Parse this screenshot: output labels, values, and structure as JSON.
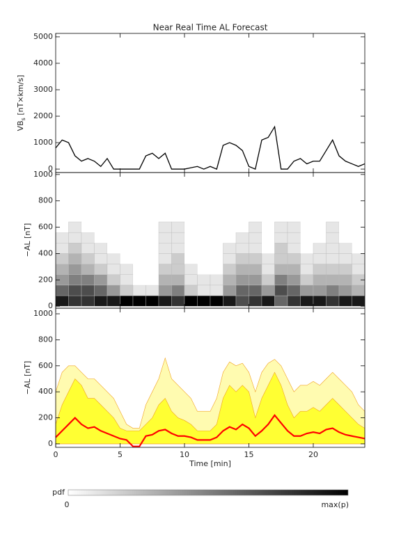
{
  "chart_data": [
    {
      "type": "line",
      "title": "Near Real Time AL Forecast",
      "y_label": {
        "main": "VB",
        "sub": "s",
        "unit": " [nT×km/s]"
      },
      "x": [
        0,
        0.5,
        1,
        1.5,
        2,
        2.5,
        3,
        3.5,
        4,
        4.5,
        5,
        5.5,
        6,
        6.5,
        7,
        7.5,
        8,
        8.5,
        9,
        9.5,
        10,
        10.5,
        11,
        11.5,
        12,
        12.5,
        13,
        13.5,
        14,
        14.5,
        15,
        15.5,
        16,
        16.5,
        17,
        17.5,
        18,
        18.5,
        19,
        19.5,
        20,
        20.5,
        21,
        21.5,
        22,
        22.5,
        23,
        23.5,
        24
      ],
      "values": [
        800,
        1100,
        1000,
        500,
        300,
        400,
        300,
        100,
        400,
        0,
        0,
        0,
        0,
        0,
        500,
        600,
        400,
        600,
        0,
        0,
        0,
        50,
        100,
        0,
        100,
        0,
        900,
        1000,
        900,
        700,
        100,
        0,
        1100,
        1200,
        1600,
        0,
        0,
        300,
        400,
        200,
        300,
        300,
        700,
        1100,
        500,
        300,
        200,
        100,
        200
      ],
      "color": "#000000",
      "xlim": [
        0,
        24
      ],
      "xticks": [
        0,
        5,
        10,
        15,
        20
      ],
      "ylim": [
        -130,
        5130
      ],
      "yticks": [
        0,
        1000,
        2000,
        3000,
        4000,
        5000
      ]
    },
    {
      "type": "heatmap",
      "y_label": "−AL [nT]",
      "x_edges": [
        0,
        1,
        2,
        3,
        4,
        5,
        6,
        7,
        8,
        9,
        10,
        11,
        12,
        13,
        14,
        15,
        16,
        17,
        18,
        19,
        20,
        21,
        22,
        23,
        24
      ],
      "y_edges": [
        0,
        80,
        160,
        240,
        320,
        400,
        480,
        560,
        640
      ],
      "z": [
        [
          0.9,
          0.8,
          0.8,
          0.9,
          0.9,
          1,
          1,
          1,
          0.9,
          0.8,
          1,
          1,
          1,
          0.9,
          0.7,
          0.8,
          0.9,
          0.6,
          0.8,
          0.9,
          0.9,
          0.8,
          0.9,
          0.9
        ],
        [
          0.6,
          0.7,
          0.7,
          0.6,
          0.4,
          0.2,
          0.1,
          0.1,
          0.4,
          0.5,
          0.2,
          0.1,
          0.1,
          0.4,
          0.6,
          0.6,
          0.4,
          0.7,
          0.6,
          0.4,
          0.4,
          0.5,
          0.4,
          0.3
        ],
        [
          0.4,
          0.5,
          0.5,
          0.4,
          0.2,
          0.1,
          0,
          0,
          0.3,
          0.3,
          0.1,
          0.1,
          0.1,
          0.3,
          0.4,
          0.4,
          0.2,
          0.5,
          0.4,
          0.2,
          0.3,
          0.3,
          0.3,
          0.2
        ],
        [
          0.3,
          0.4,
          0.3,
          0.2,
          0.1,
          0.1,
          0,
          0,
          0.2,
          0.2,
          0.1,
          0,
          0,
          0.2,
          0.3,
          0.3,
          0.1,
          0.3,
          0.3,
          0.1,
          0.2,
          0.2,
          0.2,
          0.1
        ],
        [
          0.2,
          0.3,
          0.2,
          0.1,
          0.1,
          0,
          0,
          0,
          0.1,
          0.2,
          0,
          0,
          0,
          0.1,
          0.2,
          0.2,
          0.1,
          0.2,
          0.2,
          0.1,
          0.1,
          0.1,
          0.1,
          0.1
        ],
        [
          0.1,
          0.2,
          0.1,
          0.1,
          0,
          0,
          0,
          0,
          0.1,
          0.1,
          0,
          0,
          0,
          0.1,
          0.1,
          0.1,
          0,
          0.2,
          0.1,
          0,
          0.1,
          0.1,
          0.1,
          0
        ],
        [
          0.1,
          0.1,
          0.1,
          0,
          0,
          0,
          0,
          0,
          0.1,
          0.1,
          0,
          0,
          0,
          0,
          0.1,
          0.1,
          0,
          0.1,
          0.1,
          0,
          0,
          0.1,
          0,
          0
        ],
        [
          0,
          0.1,
          0,
          0,
          0,
          0,
          0,
          0,
          0.1,
          0.1,
          0,
          0,
          0,
          0,
          0,
          0.1,
          0,
          0.1,
          0.1,
          0,
          0,
          0.1,
          0,
          0
        ]
      ],
      "xlim": [
        0,
        24
      ],
      "xticks": [
        0,
        5,
        10,
        15,
        20
      ],
      "ylim": [
        -15,
        1015
      ],
      "yticks": [
        0,
        200,
        400,
        600,
        800,
        1000
      ]
    },
    {
      "type": "band",
      "y_label": "−AL [nT]",
      "x_label": "Time [min]",
      "x": [
        0,
        0.5,
        1,
        1.5,
        2,
        2.5,
        3,
        3.5,
        4,
        4.5,
        5,
        5.5,
        6,
        6.5,
        7,
        7.5,
        8,
        8.5,
        9,
        9.5,
        10,
        10.5,
        11,
        11.5,
        12,
        12.5,
        13,
        13.5,
        14,
        14.5,
        15,
        15.5,
        16,
        16.5,
        17,
        17.5,
        18,
        18.5,
        19,
        19.5,
        20,
        20.5,
        21,
        21.5,
        22,
        22.5,
        23,
        23.5,
        24
      ],
      "series": [
        {
          "kind": "area",
          "color": "#fffbb0",
          "values": [
            400,
            550,
            600,
            600,
            550,
            500,
            500,
            450,
            400,
            350,
            250,
            150,
            120,
            120,
            300,
            400,
            500,
            660,
            500,
            450,
            400,
            350,
            250,
            250,
            250,
            350,
            550,
            630,
            600,
            620,
            550,
            400,
            550,
            620,
            650,
            600,
            500,
            400,
            450,
            450,
            480,
            450,
            500,
            550,
            500,
            450,
            400,
            300,
            250
          ]
        },
        {
          "kind": "area",
          "color": "#ffff33",
          "values": [
            150,
            300,
            400,
            500,
            450,
            350,
            350,
            300,
            250,
            200,
            120,
            100,
            100,
            100,
            150,
            200,
            300,
            350,
            250,
            200,
            180,
            150,
            100,
            100,
            100,
            150,
            350,
            450,
            400,
            450,
            400,
            200,
            350,
            450,
            550,
            450,
            300,
            200,
            250,
            250,
            280,
            250,
            300,
            350,
            300,
            250,
            200,
            150,
            120
          ]
        },
        {
          "kind": "line",
          "color": "#ff0000",
          "values": [
            50,
            100,
            150,
            200,
            150,
            120,
            130,
            100,
            80,
            60,
            40,
            30,
            -20,
            -20,
            60,
            70,
            100,
            110,
            80,
            60,
            60,
            50,
            30,
            30,
            30,
            50,
            100,
            130,
            110,
            150,
            120,
            60,
            100,
            150,
            220,
            160,
            100,
            60,
            60,
            80,
            90,
            80,
            110,
            120,
            90,
            70,
            60,
            50,
            40
          ]
        }
      ],
      "xlim": [
        0,
        24
      ],
      "xticks": [
        0,
        5,
        10,
        15,
        20
      ],
      "ylim": [
        -27,
        1043
      ],
      "yticks": [
        0,
        200,
        400,
        600,
        800,
        1000
      ]
    }
  ],
  "colorbar": {
    "label": "pdf",
    "min_label": "0",
    "max_label": "max(p)"
  }
}
